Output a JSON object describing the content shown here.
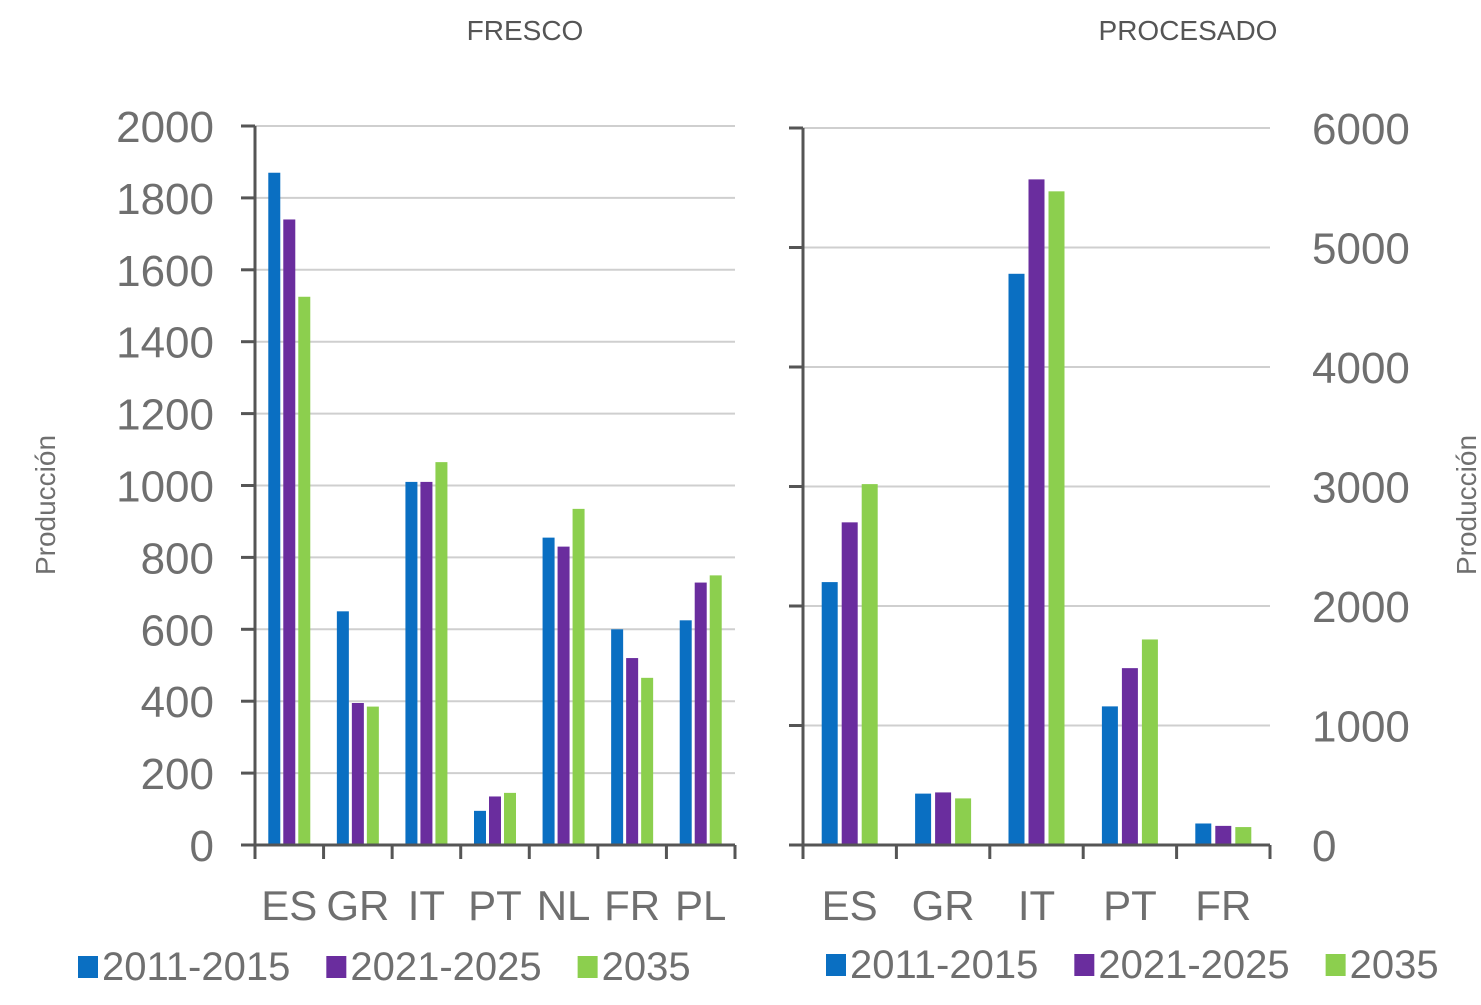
{
  "colors": {
    "series_2011_2015": "#0a6fc2",
    "series_2021_2025": "#6a2d9e",
    "series_2035": "#8ccf4e",
    "grid": "#cfcfcf",
    "axis": "#555555"
  },
  "chart_data": [
    {
      "type": "bar",
      "title": "FRESCO",
      "ylabel": "Producción",
      "xlabel": "",
      "ylim": [
        0,
        2000
      ],
      "yticks": [
        "0",
        "200",
        "400",
        "600",
        "800",
        "1000",
        "1200",
        "1400",
        "1600",
        "1800",
        "2000"
      ],
      "categories": [
        "ES",
        "GR",
        "IT",
        "PT",
        "NL",
        "FR",
        "PL"
      ],
      "series": [
        {
          "name": "2011-2015",
          "values": [
            1870,
            650,
            1010,
            95,
            855,
            600,
            625
          ]
        },
        {
          "name": "2021-2025",
          "values": [
            1740,
            395,
            1010,
            135,
            830,
            520,
            730
          ]
        },
        {
          "name": "2035",
          "values": [
            1525,
            385,
            1065,
            145,
            935,
            465,
            750
          ]
        }
      ],
      "grid": true,
      "legend": "bottom"
    },
    {
      "type": "bar",
      "title": "PROCESADO",
      "ylabel": "Producción",
      "xlabel": "",
      "ylim": [
        0,
        6000
      ],
      "yticks": [
        "0",
        "1000",
        "2000",
        "3000",
        "4000",
        "5000",
        "6000"
      ],
      "categories": [
        "ES",
        "GR",
        "IT",
        "PT",
        "FR"
      ],
      "series": [
        {
          "name": "2011-2015",
          "values": [
            2200,
            430,
            4780,
            1160,
            180
          ]
        },
        {
          "name": "2021-2025",
          "values": [
            2700,
            440,
            5570,
            1480,
            160
          ]
        },
        {
          "name": "2035",
          "values": [
            3020,
            390,
            5470,
            1720,
            150
          ]
        }
      ],
      "grid": true,
      "legend": "bottom"
    }
  ]
}
